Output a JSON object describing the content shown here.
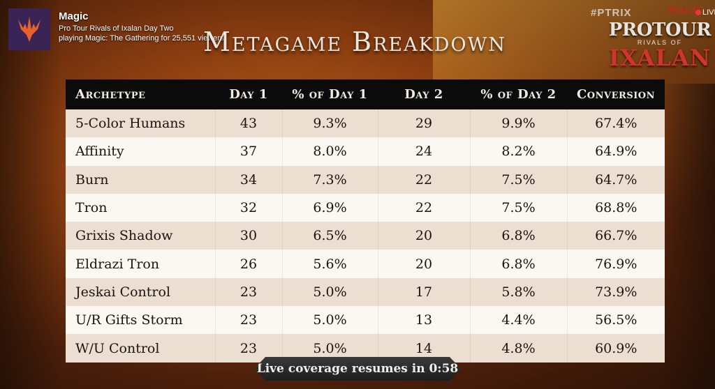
{
  "stream": {
    "channel_name": "Magic",
    "title": "Pro Tour Rivals of Ixalan Day Two",
    "subtitle": "playing Magic: The Gathering for 25,551 viewers"
  },
  "branding": {
    "hashtag": "#PTRIX",
    "live_label": "LIVE",
    "magic_mark": "MAGIC",
    "pt_name": "PROTOUR",
    "pt_sub": "RIVALS OF",
    "pt_set": "IXALAN"
  },
  "page_title": "Metagame Breakdown",
  "table": {
    "columns": [
      "Archetype",
      "Day 1",
      "% of Day 1",
      "Day 2",
      "% of Day 2",
      "Conversion"
    ],
    "rows": [
      [
        "5-Color Humans",
        "43",
        "9.3%",
        "29",
        "9.9%",
        "67.4%"
      ],
      [
        "Affinity",
        "37",
        "8.0%",
        "24",
        "8.2%",
        "64.9%"
      ],
      [
        "Burn",
        "34",
        "7.3%",
        "22",
        "7.5%",
        "64.7%"
      ],
      [
        "Tron",
        "32",
        "6.9%",
        "22",
        "7.5%",
        "68.8%"
      ],
      [
        "Grixis Shadow",
        "30",
        "6.5%",
        "20",
        "6.8%",
        "66.7%"
      ],
      [
        "Eldrazi Tron",
        "26",
        "5.6%",
        "20",
        "6.8%",
        "76.9%"
      ],
      [
        "Jeskai Control",
        "23",
        "5.0%",
        "17",
        "5.8%",
        "73.9%"
      ],
      [
        "U/R Gifts Storm",
        "23",
        "5.0%",
        "13",
        "4.4%",
        "56.5%"
      ],
      [
        "W/U Control",
        "23",
        "5.0%",
        "14",
        "4.8%",
        "60.9%"
      ]
    ]
  },
  "timer_text": "Live coverage resumes in 0:58",
  "colors": {
    "header_bg": "#0b0b0b",
    "row_odd": "#ecdfd1",
    "row_even": "#fbf8f4",
    "ixalan_red": "#d0342a",
    "live_red": "#e53935"
  }
}
